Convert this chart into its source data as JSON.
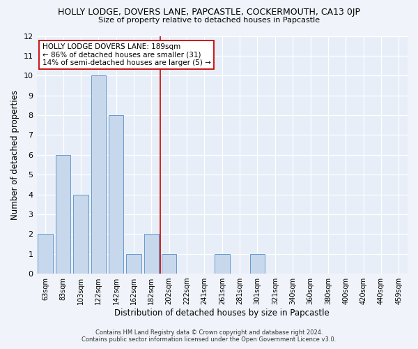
{
  "title": "HOLLY LODGE, DOVERS LANE, PAPCASTLE, COCKERMOUTH, CA13 0JP",
  "subtitle": "Size of property relative to detached houses in Papcastle",
  "xlabel": "Distribution of detached houses by size in Papcastle",
  "ylabel": "Number of detached properties",
  "bar_labels": [
    "63sqm",
    "83sqm",
    "103sqm",
    "122sqm",
    "142sqm",
    "162sqm",
    "182sqm",
    "202sqm",
    "222sqm",
    "241sqm",
    "261sqm",
    "281sqm",
    "301sqm",
    "321sqm",
    "340sqm",
    "360sqm",
    "380sqm",
    "400sqm",
    "420sqm",
    "440sqm",
    "459sqm"
  ],
  "bar_values": [
    2,
    6,
    4,
    10,
    8,
    1,
    2,
    1,
    0,
    0,
    1,
    0,
    1,
    0,
    0,
    0,
    0,
    0,
    0,
    0,
    0
  ],
  "bar_color": "#c8d8ec",
  "bar_edge_color": "#6699cc",
  "ylim": [
    0,
    12
  ],
  "yticks": [
    0,
    1,
    2,
    3,
    4,
    5,
    6,
    7,
    8,
    9,
    10,
    11,
    12
  ],
  "vline_x": 6.5,
  "vline_color": "#cc0000",
  "annotation_line1": "HOLLY LODGE DOVERS LANE: 189sqm",
  "annotation_line2": "← 86% of detached houses are smaller (31)",
  "annotation_line3": "14% of semi-detached houses are larger (5) →",
  "annotation_box_facecolor": "#ffffff",
  "annotation_box_edgecolor": "#cc0000",
  "footnote1": "Contains HM Land Registry data © Crown copyright and database right 2024.",
  "footnote2": "Contains public sector information licensed under the Open Government Licence v3.0.",
  "fig_facecolor": "#f0f4fa",
  "plot_facecolor": "#e8eef8"
}
